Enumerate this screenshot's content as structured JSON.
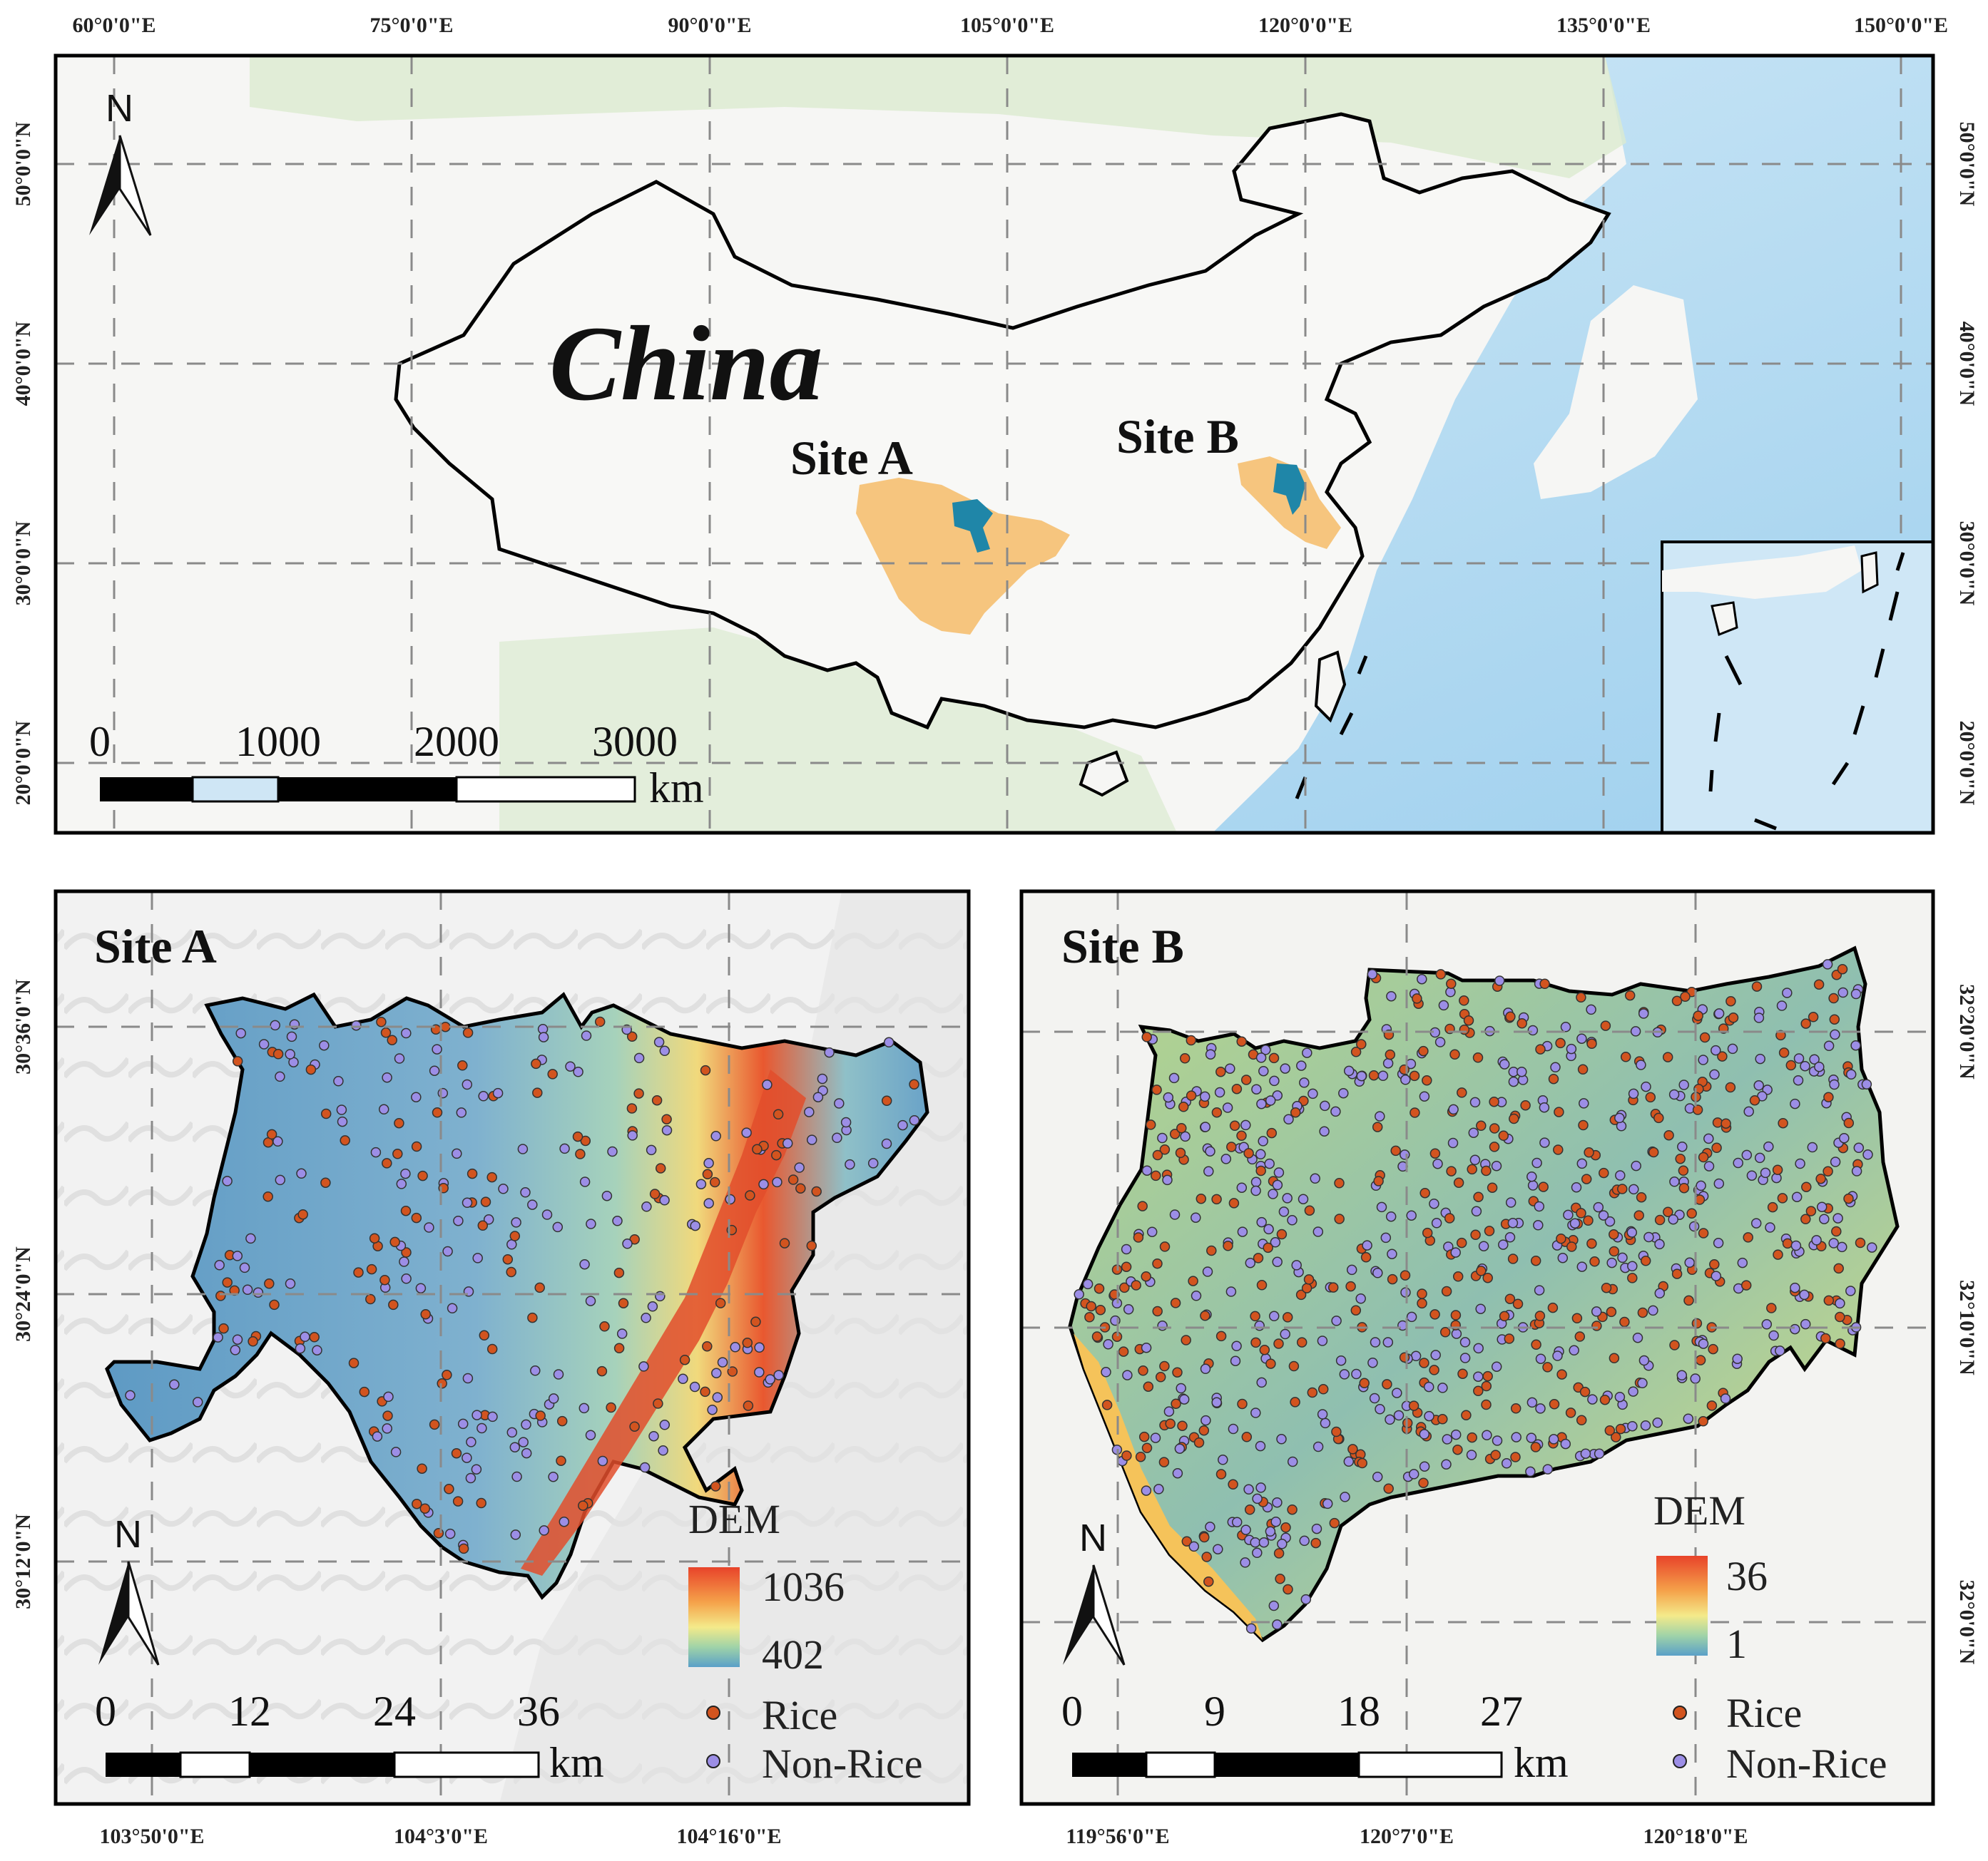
{
  "colors": {
    "ocean": "#cfe6f5",
    "ocean_deep": "#8fc6ea",
    "land": "#f6f6f4",
    "forest": "#dcebd0",
    "site_province": "#f6c57e",
    "site_study_area": "#1f86a8",
    "rice_point": "#d2541f",
    "nonrice_point": "#9c8ee6",
    "border": "#000000",
    "grid": "#8a8a8a"
  },
  "overview": {
    "country_label": "China",
    "site_a_label": "Site A",
    "site_b_label": "Site B",
    "north_label": "N",
    "lon_ticks": [
      "60°0'0\"E",
      "75°0'0\"E",
      "90°0'0\"E",
      "105°0'0\"E",
      "120°0'0\"E",
      "135°0'0\"E",
      "150°0'0\"E"
    ],
    "lat_ticks": [
      "50°0'0\"N",
      "40°0'0\"N",
      "30°0'0\"N",
      "20°0'0\"N"
    ],
    "scale": {
      "labels": [
        "0",
        "1000",
        "2000",
        "3000"
      ],
      "unit": "km"
    }
  },
  "site_a": {
    "title": "Site A",
    "north_label": "N",
    "lon_ticks": [
      "103°50'0\"E",
      "104°3'0\"E",
      "104°16'0\"E"
    ],
    "lat_ticks": [
      "30°36'0\"N",
      "30°24'0\"N",
      "30°12'0\"N"
    ],
    "legend": {
      "title": "DEM",
      "max": "1036",
      "min": "402",
      "rice": "Rice",
      "nonrice": "Non-Rice"
    },
    "scale": {
      "labels": [
        "0",
        "12",
        "24",
        "36"
      ],
      "unit": "km"
    }
  },
  "site_b": {
    "title": "Site B",
    "north_label": "N",
    "lon_ticks": [
      "119°56'0\"E",
      "120°7'0\"E",
      "120°18'0\"E"
    ],
    "lat_ticks": [
      "32°20'0\"N",
      "32°10'0\"N",
      "32°0'0\"N"
    ],
    "legend": {
      "title": "DEM",
      "max": "36",
      "min": "1",
      "rice": "Rice",
      "nonrice": "Non-Rice"
    },
    "scale": {
      "labels": [
        "0",
        "9",
        "18",
        "27"
      ],
      "unit": "km"
    }
  }
}
